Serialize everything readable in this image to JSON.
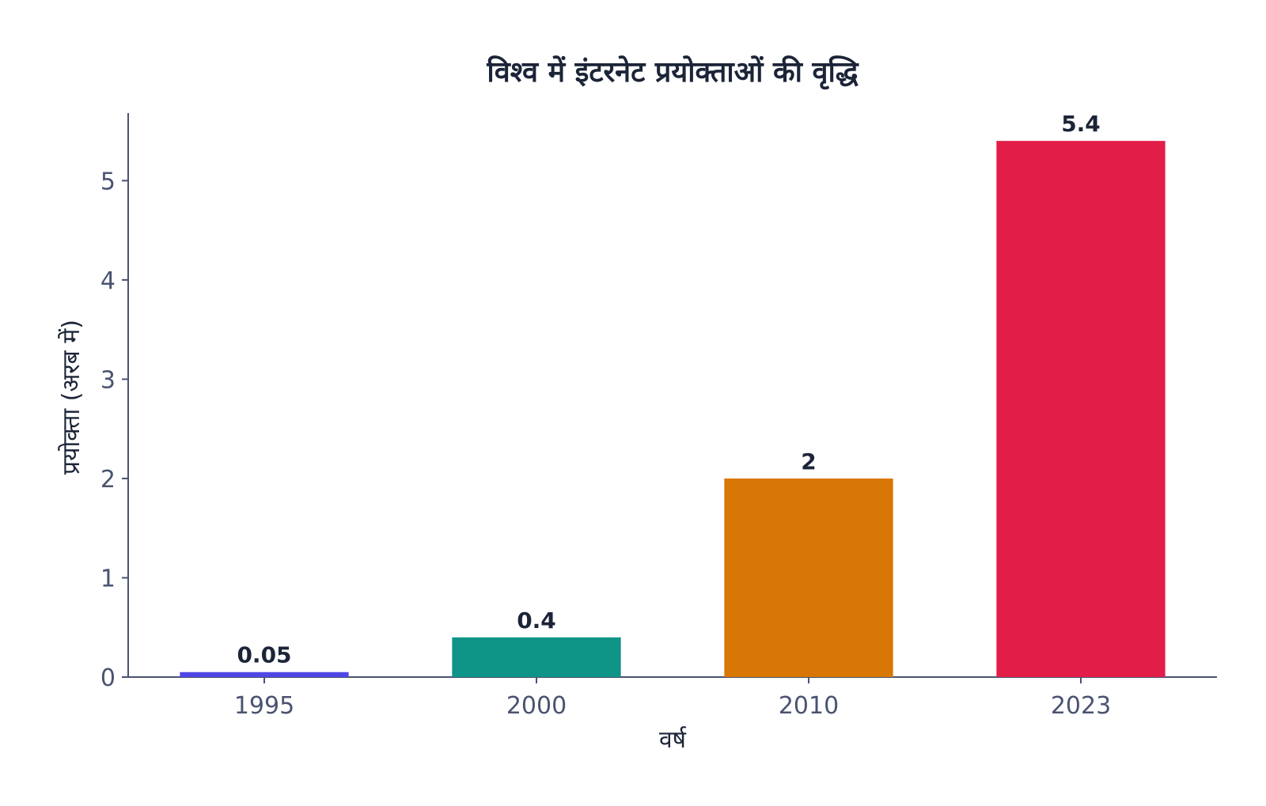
{
  "chart_data": {
    "type": "bar",
    "title": "विश्व में इंटरनेट प्रयोक्ताओं की वृद्धि",
    "xlabel": "वर्ष",
    "ylabel": "प्रयोक्ता (अरब में)",
    "categories": [
      "1995",
      "2000",
      "2010",
      "2023"
    ],
    "values": [
      0.05,
      0.4,
      2,
      5.4
    ],
    "value_labels": [
      "0.05",
      "0.4",
      "2",
      "5.4"
    ],
    "colors": [
      "#4f46e5",
      "#0f9488",
      "#d97706",
      "#e11d48"
    ],
    "ylim": [
      0,
      5.68
    ],
    "yticks": [
      0,
      1,
      2,
      3,
      4,
      5
    ],
    "grid": false,
    "legend": "none"
  }
}
